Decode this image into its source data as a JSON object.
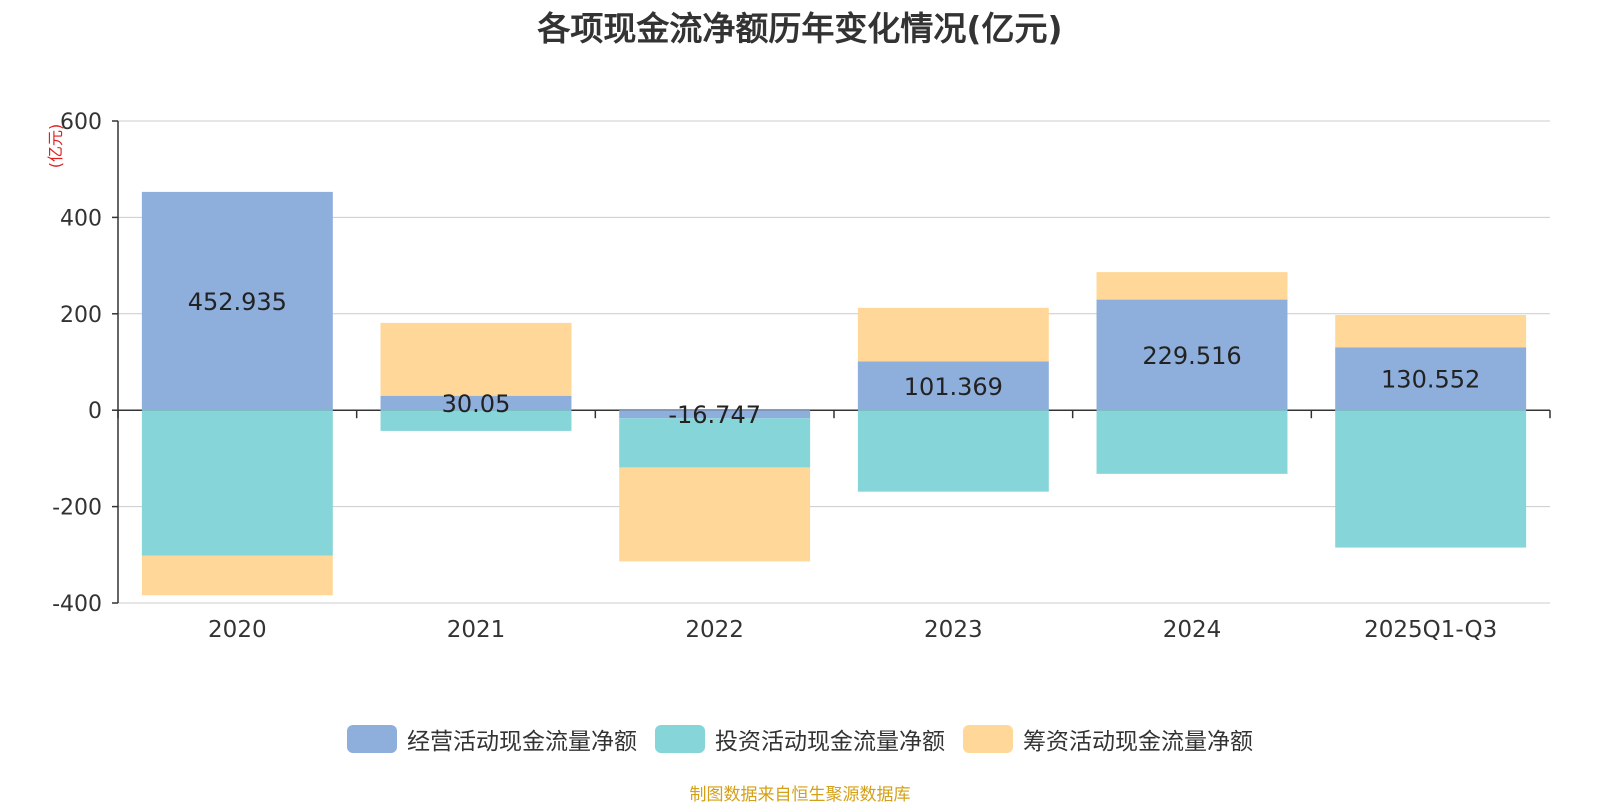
{
  "chart_data": {
    "type": "bar",
    "stacked": true,
    "title": "各项现金流净额历年变化情况(亿元)",
    "ylabel": "(亿元)",
    "xlabel": "",
    "ylim": [
      -400,
      600
    ],
    "yticks": [
      600,
      400,
      200,
      0,
      -200,
      -400
    ],
    "categories": [
      "2020",
      "2021",
      "2022",
      "2023",
      "2024",
      "2025Q1-Q3"
    ],
    "series": [
      {
        "name": "经营活动现金流量净额",
        "color": "#8eaedc",
        "values": [
          452.935,
          30.05,
          -16.747,
          101.369,
          229.516,
          130.552
        ],
        "labels": [
          "452.935",
          "30.05",
          "-16.747",
          "101.369",
          "229.516",
          "130.552"
        ]
      },
      {
        "name": "投资活动现金流量净额",
        "color": "#86d5d9",
        "values": [
          -302,
          -43,
          -102,
          -169,
          -132,
          -285
        ]
      },
      {
        "name": "筹资活动现金流量净额",
        "color": "#ffd899",
        "values": [
          -82,
          151,
          -195,
          111,
          57,
          67
        ]
      }
    ]
  },
  "source": "制图数据来自恒生聚源数据库"
}
